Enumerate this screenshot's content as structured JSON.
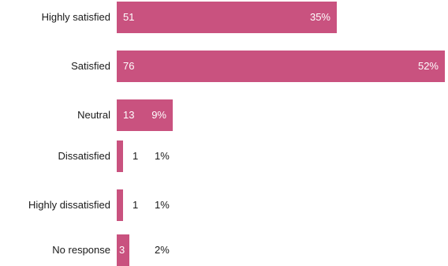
{
  "chart_data": {
    "type": "bar",
    "orientation": "horizontal",
    "categories": [
      "Highly satisfied",
      "Satisfied",
      "Neutral",
      "Dissatisfied",
      "Highly dissatisfied",
      "No response"
    ],
    "values": [
      51,
      76,
      13,
      1,
      1,
      3
    ],
    "percent_labels": [
      "35%",
      "52%",
      "9%",
      "1%",
      "1%",
      "2%"
    ],
    "bar_color": "#c9527f",
    "grid": false,
    "legend": "none"
  }
}
